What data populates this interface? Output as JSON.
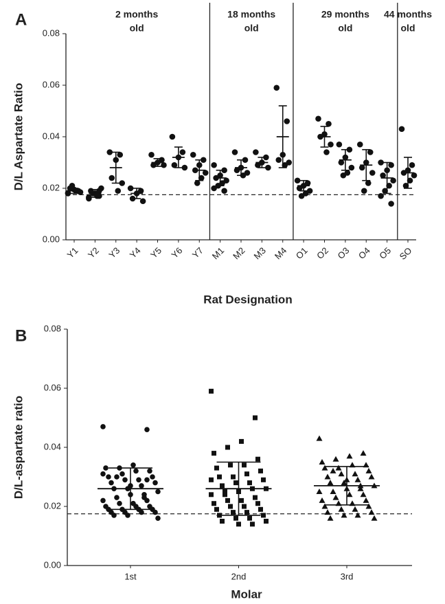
{
  "chart_data": [
    {
      "type": "dotplot",
      "panel_label": "A",
      "xlabel": "Rat Designation",
      "ylabel": "D/L Aspartate Ratio",
      "color": "#111111",
      "categories": [
        "Y1",
        "Y2",
        "Y3",
        "Y4",
        "Y5",
        "Y6",
        "Y7",
        "M1",
        "M2",
        "M3",
        "M4",
        "O1",
        "O2",
        "O3",
        "O4",
        "O5",
        "SO"
      ],
      "groups": [
        {
          "label_lines": [
            "2 months",
            "old"
          ],
          "size": 7
        },
        {
          "label_lines": [
            "18 months",
            "old"
          ],
          "size": 4
        },
        {
          "label_lines": [
            "29 months",
            "old"
          ],
          "size": 5
        },
        {
          "label_lines": [
            "44 months",
            "old"
          ],
          "size": 1
        }
      ],
      "points": [
        [
          0.018,
          0.019,
          0.0195,
          0.02,
          0.0185,
          0.019,
          0.021,
          0.0182
        ],
        [
          0.016,
          0.017,
          0.018,
          0.019,
          0.02,
          0.017,
          0.018,
          0.0165,
          0.019
        ],
        [
          0.034,
          0.033,
          0.031,
          0.024,
          0.022,
          0.019
        ],
        [
          0.02,
          0.019,
          0.018,
          0.016,
          0.015
        ],
        [
          0.033,
          0.031,
          0.03,
          0.029,
          0.029
        ],
        [
          0.04,
          0.034,
          0.032,
          0.029,
          0.028
        ],
        [
          0.033,
          0.031,
          0.029,
          0.027,
          0.026,
          0.024,
          0.022
        ],
        [
          0.029,
          0.027,
          0.025,
          0.024,
          0.023,
          0.022,
          0.021,
          0.02,
          0.019
        ],
        [
          0.034,
          0.031,
          0.028,
          0.027,
          0.026,
          0.025
        ],
        [
          0.034,
          0.032,
          0.03,
          0.029,
          0.028
        ],
        [
          0.059,
          0.046,
          0.033,
          0.031,
          0.03,
          0.029
        ],
        [
          0.023,
          0.022,
          0.021,
          0.02,
          0.019,
          0.018,
          0.017
        ],
        [
          0.047,
          0.045,
          0.041,
          0.04,
          0.037,
          0.034
        ],
        [
          0.037,
          0.035,
          0.032,
          0.03,
          0.028,
          0.026,
          0.025
        ],
        [
          0.037,
          0.034,
          0.03,
          0.028,
          0.026,
          0.022,
          0.019
        ],
        [
          0.03,
          0.029,
          0.027,
          0.025,
          0.023,
          0.021,
          0.019,
          0.017,
          0.014
        ],
        [
          0.043,
          0.029,
          0.027,
          0.026,
          0.025,
          0.023,
          0.021
        ]
      ],
      "means": [
        0.019,
        0.018,
        0.028,
        0.018,
        0.03,
        0.032,
        0.027,
        0.024,
        0.028,
        0.03,
        0.04,
        0.021,
        0.04,
        0.031,
        0.029,
        0.024,
        0.026
      ],
      "sd": [
        0.001,
        0.0015,
        0.006,
        0.002,
        0.0015,
        0.004,
        0.004,
        0.003,
        0.003,
        0.002,
        0.012,
        0.002,
        0.004,
        0.004,
        0.006,
        0.006,
        0.006
      ],
      "ylim": [
        0,
        0.08
      ],
      "yticks": [
        {
          "value": 0,
          "label": "0.00"
        },
        0.02,
        0.04,
        0.06,
        0.08
      ],
      "reference_line": 0.0175
    },
    {
      "type": "dotplot",
      "panel_label": "B",
      "xlabel": "Molar",
      "ylabel": "D/L-aspartate ratio",
      "color": "#111111",
      "categories": [
        "1st",
        "2nd",
        "3rd"
      ],
      "markers": [
        "circle",
        "square",
        "triangle"
      ],
      "points": [
        [
          0.047,
          0.046,
          0.034,
          0.033,
          0.033,
          0.032,
          0.032,
          0.031,
          0.03,
          0.03,
          0.029,
          0.029,
          0.028,
          0.028,
          0.027,
          0.026,
          0.026,
          0.025,
          0.024,
          0.024,
          0.023,
          0.022,
          0.022,
          0.021,
          0.021,
          0.02,
          0.02,
          0.02,
          0.019,
          0.019,
          0.019,
          0.019,
          0.018,
          0.018,
          0.018,
          0.018,
          0.017,
          0.017,
          0.016,
          0.023,
          0.027,
          0.03,
          0.031,
          0.029
        ],
        [
          0.059,
          0.05,
          0.042,
          0.04,
          0.038,
          0.036,
          0.034,
          0.034,
          0.033,
          0.032,
          0.031,
          0.03,
          0.03,
          0.029,
          0.028,
          0.028,
          0.027,
          0.026,
          0.026,
          0.025,
          0.024,
          0.024,
          0.023,
          0.022,
          0.022,
          0.021,
          0.021,
          0.02,
          0.02,
          0.019,
          0.019,
          0.018,
          0.018,
          0.017,
          0.017,
          0.016,
          0.016,
          0.015,
          0.015,
          0.014,
          0.014,
          0.025,
          0.029
        ],
        [
          0.043,
          0.038,
          0.037,
          0.036,
          0.035,
          0.034,
          0.034,
          0.033,
          0.033,
          0.032,
          0.031,
          0.031,
          0.03,
          0.03,
          0.029,
          0.028,
          0.028,
          0.027,
          0.027,
          0.026,
          0.025,
          0.025,
          0.024,
          0.024,
          0.023,
          0.022,
          0.022,
          0.021,
          0.021,
          0.02,
          0.02,
          0.019,
          0.019,
          0.018,
          0.018,
          0.017,
          0.017,
          0.016,
          0.016,
          0.026,
          0.029,
          0.032
        ]
      ],
      "means": [
        0.026,
        0.026,
        0.027
      ],
      "sd": [
        0.007,
        0.009,
        0.0065
      ],
      "ylim": [
        0,
        0.08
      ],
      "yticks": [
        {
          "value": 0,
          "label": "0.00"
        },
        0.02,
        0.04,
        0.06,
        0.08
      ],
      "reference_line": 0.0175
    }
  ]
}
